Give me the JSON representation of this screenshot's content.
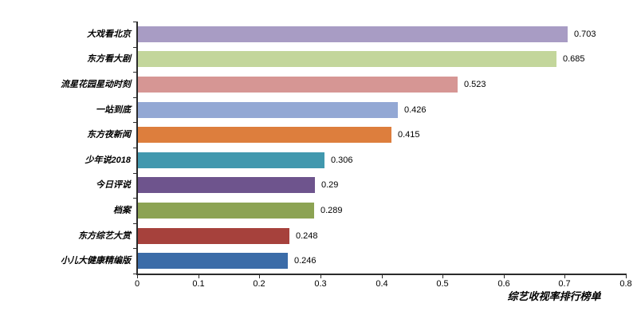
{
  "chart_data": {
    "type": "bar",
    "orientation": "horizontal",
    "title": "综艺收视率排行榜单",
    "categories": [
      "大戏看北京",
      "东方看大剧",
      "流星花园星动时刻",
      "一站到底",
      "东方夜新闻",
      "少年说2018",
      "今日评说",
      "档案",
      "东方综艺大赏",
      "小儿大健康精编版"
    ],
    "values": [
      0.703,
      0.685,
      0.523,
      0.426,
      0.415,
      0.306,
      0.29,
      0.289,
      0.248,
      0.246
    ],
    "value_labels": [
      "0.703",
      "0.685",
      "0.523",
      "0.426",
      "0.415",
      "0.306",
      "0.29",
      "0.289",
      "0.248",
      "0.246"
    ],
    "bar_colors": [
      "#A89CC4",
      "#C3D69B",
      "#D69694",
      "#93A8D4",
      "#DD7E3D",
      "#4198AE",
      "#6E548D",
      "#8CA353",
      "#A6413C",
      "#3B6CA8"
    ],
    "xlabel": "",
    "ylabel": "",
    "xlim": [
      0,
      0.8
    ],
    "x_ticks": [
      "0",
      "0.1",
      "0.2",
      "0.3",
      "0.4",
      "0.5",
      "0.6",
      "0.7",
      "0.8"
    ],
    "grid": "off",
    "legend": "none",
    "axis_color": "#2b2b2b",
    "text_color": "#000000"
  }
}
